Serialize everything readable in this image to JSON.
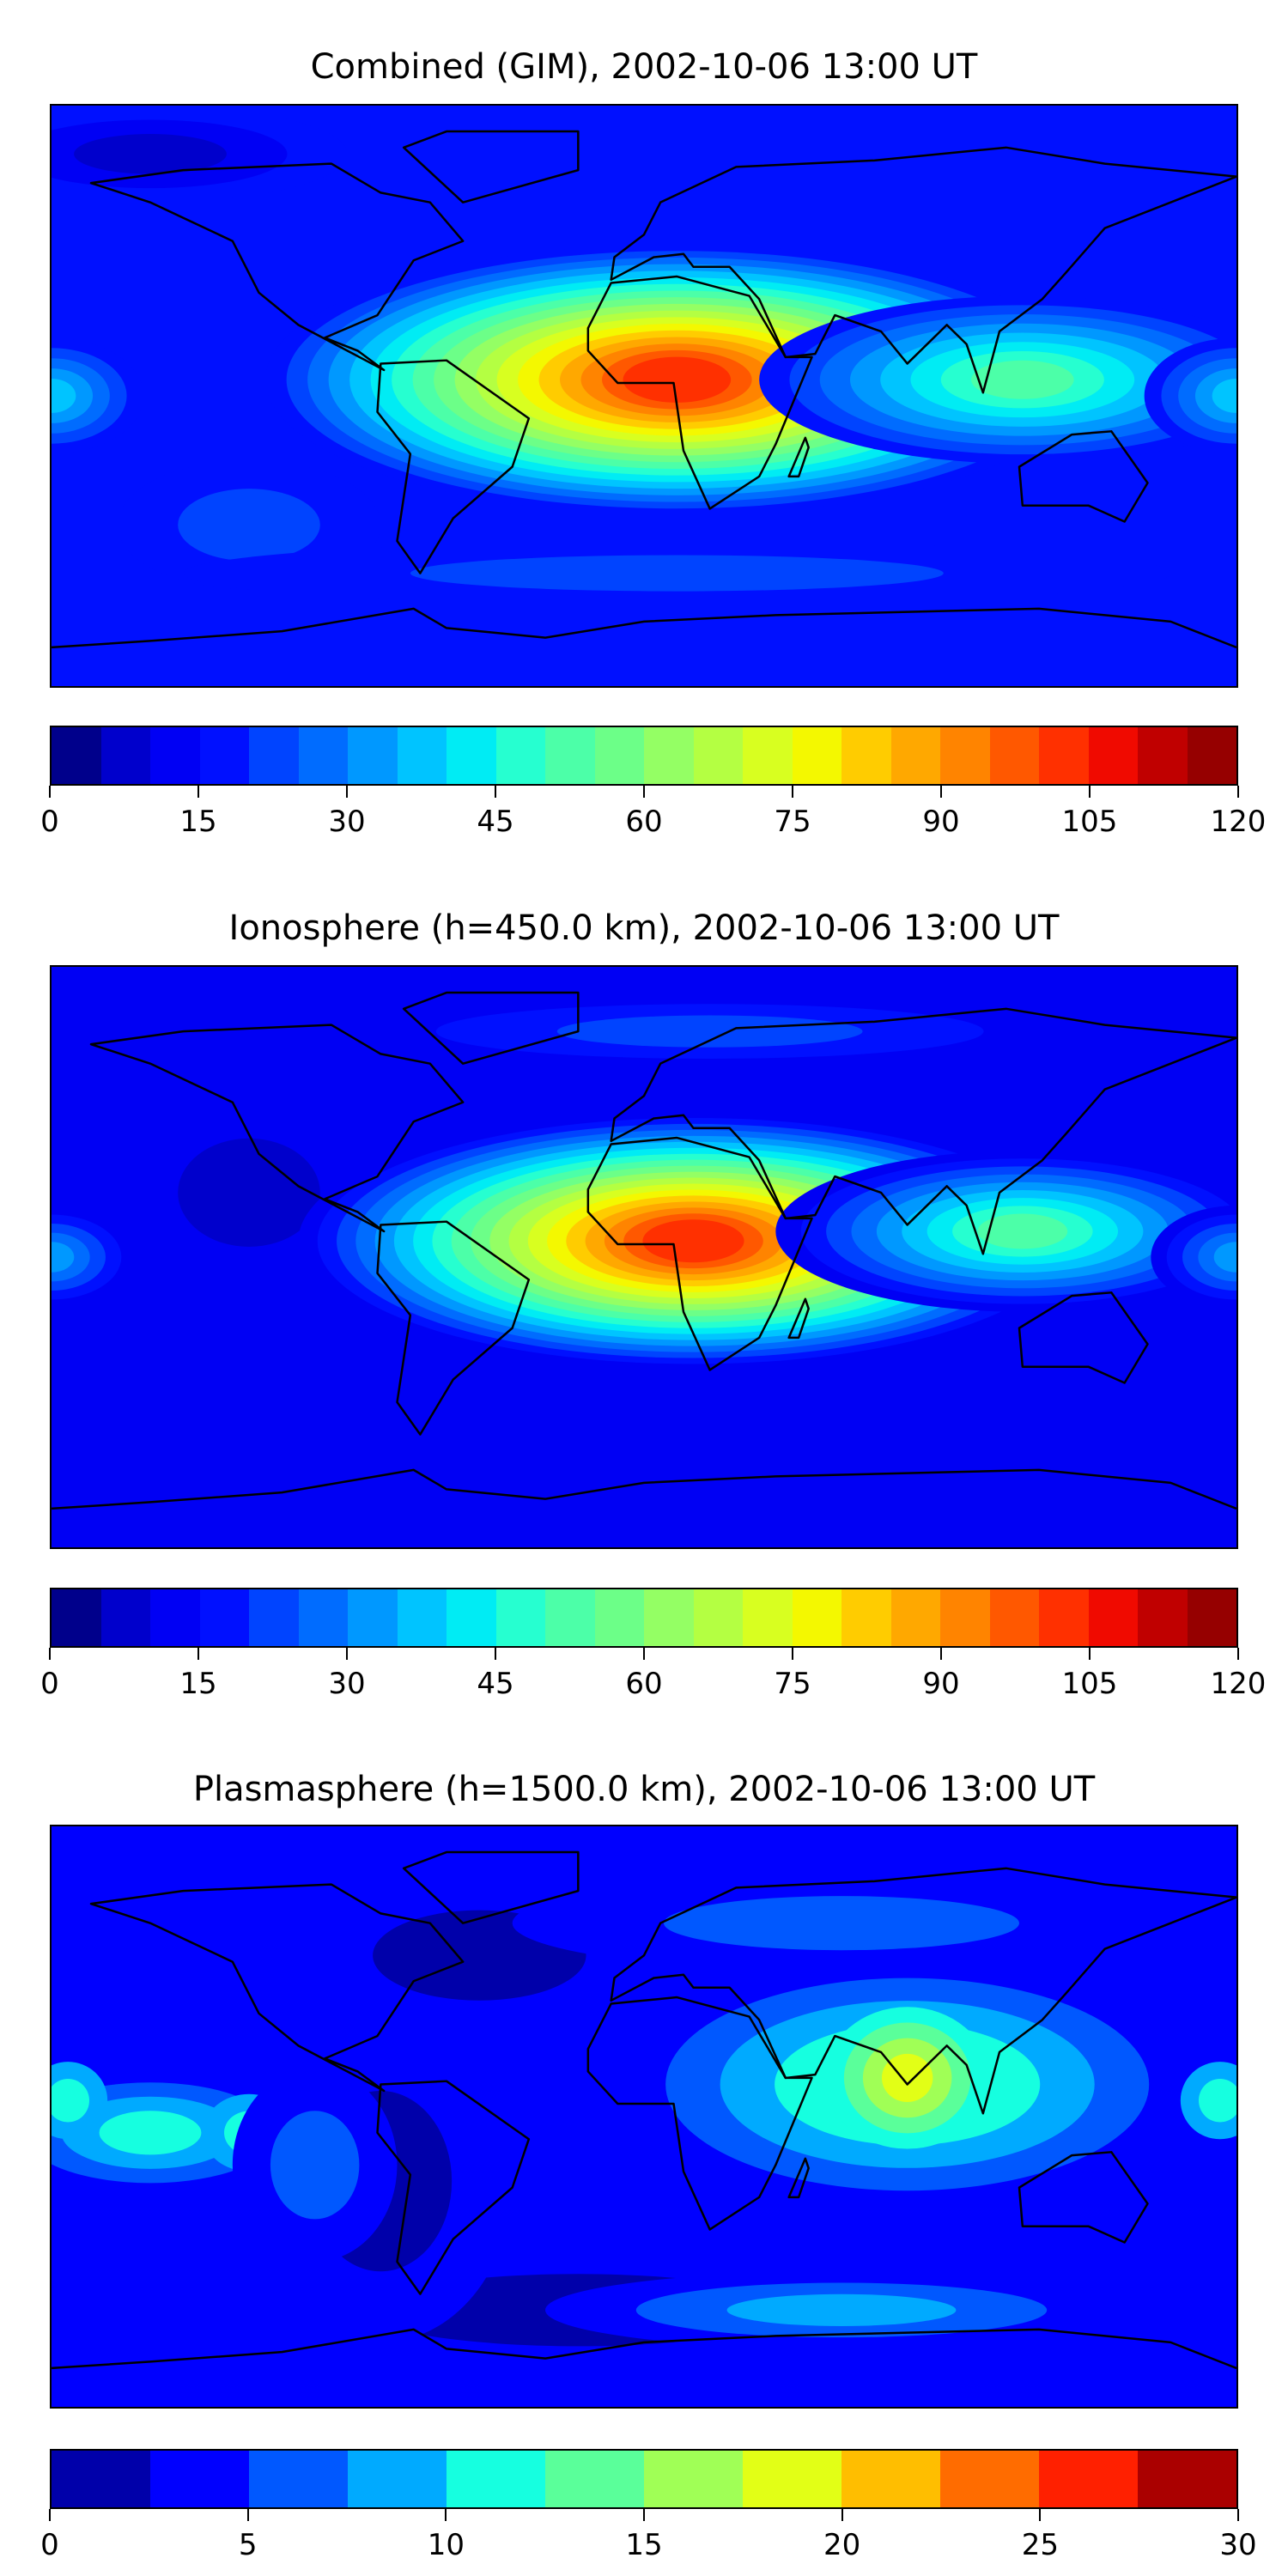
{
  "chart_data": [
    {
      "type": "heatmap",
      "title": "Combined (GIM), 2002-10-06 13:00 UT",
      "projection": "equirectangular world map with coastlines",
      "lon_range": [
        -180,
        180
      ],
      "lat_range": [
        -90,
        90
      ],
      "colorbar": {
        "range": [
          0,
          120
        ],
        "ticks": [
          "0",
          "15",
          "30",
          "45",
          "60",
          "75",
          "90",
          "105",
          "120"
        ],
        "tick_values": [
          0,
          15,
          30,
          45,
          60,
          75,
          90,
          105,
          120
        ],
        "levels_step": 5,
        "colors": [
          "#00008b",
          "#0000cc",
          "#0000f4",
          "#0010ff",
          "#0044ff",
          "#006cff",
          "#0098ff",
          "#00c4ff",
          "#00ecf4",
          "#26ffd0",
          "#4cffa8",
          "#6cff88",
          "#94ff64",
          "#b4ff42",
          "#d8ff20",
          "#f4f800",
          "#ffcc00",
          "#ffa800",
          "#ff8400",
          "#ff5800",
          "#ff3000",
          "#f00a00",
          "#c00000",
          "#960000"
        ]
      },
      "features": {
        "peak_region": "tropical Africa",
        "peak_value_approx": 105,
        "background_value_approx": 15
      }
    },
    {
      "type": "heatmap",
      "title": "Ionosphere  (h=450.0 km), 2002-10-06 13:00 UT",
      "projection": "equirectangular world map with coastlines",
      "lon_range": [
        -180,
        180
      ],
      "lat_range": [
        -90,
        90
      ],
      "colorbar": {
        "range": [
          0,
          120
        ],
        "ticks": [
          "0",
          "15",
          "30",
          "45",
          "60",
          "75",
          "90",
          "105",
          "120"
        ],
        "tick_values": [
          0,
          15,
          30,
          45,
          60,
          75,
          90,
          105,
          120
        ],
        "levels_step": 5,
        "colors": [
          "#00008b",
          "#0000cc",
          "#0000f4",
          "#0010ff",
          "#0044ff",
          "#006cff",
          "#0098ff",
          "#00c4ff",
          "#00ecf4",
          "#26ffd0",
          "#4cffa8",
          "#6cff88",
          "#94ff64",
          "#b4ff42",
          "#d8ff20",
          "#f4f800",
          "#ffcc00",
          "#ffa800",
          "#ff8400",
          "#ff5800",
          "#ff3000",
          "#f00a00",
          "#c00000",
          "#960000"
        ]
      },
      "features": {
        "peak_region": "tropical Africa",
        "peak_value_approx": 100,
        "background_value_approx": 10
      }
    },
    {
      "type": "heatmap",
      "title": "Plasmasphere (h=1500.0 km), 2002-10-06 13:00 UT",
      "projection": "equirectangular world map with coastlines",
      "lon_range": [
        -180,
        180
      ],
      "lat_range": [
        -90,
        90
      ],
      "colorbar": {
        "range": [
          0,
          30
        ],
        "ticks": [
          "0",
          "5",
          "10",
          "15",
          "20",
          "25",
          "30"
        ],
        "tick_values": [
          0,
          5,
          10,
          15,
          20,
          25,
          30
        ],
        "levels_step": 2.5,
        "colors": [
          "#0000aa",
          "#0000ff",
          "#0058ff",
          "#00aaff",
          "#16ffe0",
          "#5aff9a",
          "#a0ff56",
          "#e2ff16",
          "#ffbe00",
          "#ff6c00",
          "#ff2000",
          "#aa0000"
        ]
      },
      "features": {
        "peak_region": "India / Bay of Bengal",
        "peak_value_approx": 19,
        "background_value_approx": 4
      }
    }
  ]
}
